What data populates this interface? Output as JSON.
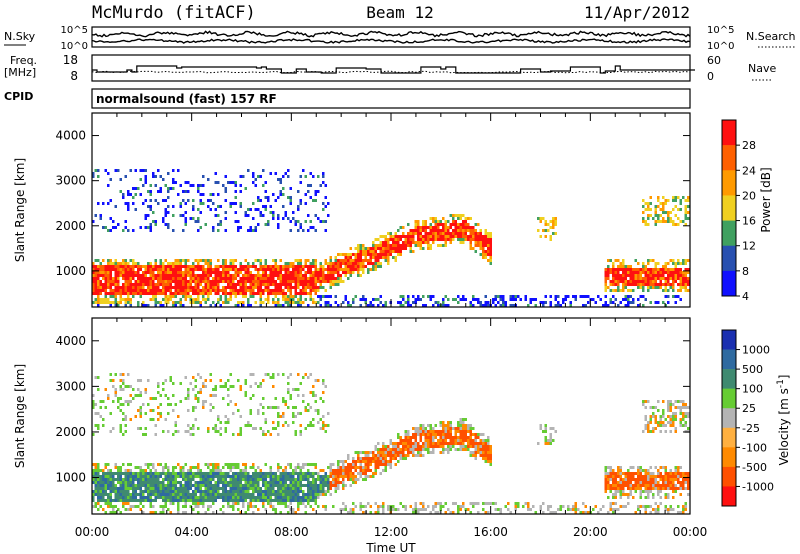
{
  "header": {
    "title": "McMurdo (fitACF)",
    "beam": "Beam 12",
    "date": "11/Apr/2012"
  },
  "panels": {
    "noise": {
      "left_label": "N.Sky",
      "right_label": "N.Search",
      "left_ticks": [
        "10^5",
        "10^0"
      ],
      "right_ticks": [
        "10^5",
        "10^0"
      ]
    },
    "freq": {
      "left_label_1": "Freq.",
      "left_label_2": "[MHz]",
      "left_ticks": [
        "18",
        "8"
      ],
      "right_label": "Nave",
      "right_ticks": [
        "60",
        "0"
      ]
    },
    "cpid": {
      "label": "CPID",
      "value": "normalsound (fast) 157 RF"
    }
  },
  "chart_data": [
    {
      "type": "heatmap",
      "name": "power",
      "ylabel": "Slant Range [km]",
      "xlabel": "",
      "ylim": [
        200,
        4500
      ],
      "y_ticks": [
        "1000",
        "2000",
        "3000",
        "4000"
      ],
      "x_ticks": [
        "00:00",
        "04:00",
        "08:00",
        "12:00",
        "16:00",
        "20:00",
        "00:00"
      ],
      "colorbar": {
        "label": "Power [dB]",
        "ticks": [
          "4",
          "8",
          "12",
          "16",
          "20",
          "24",
          "28"
        ],
        "colors": [
          "#1010ff",
          "#2850b0",
          "#40a060",
          "#f0d020",
          "#ff9a00",
          "#ff6000",
          "#ff1010"
        ]
      }
    },
    {
      "type": "heatmap",
      "name": "velocity",
      "ylabel": "Slant Range [km]",
      "xlabel": "Time UT",
      "ylim": [
        200,
        4500
      ],
      "y_ticks": [
        "1000",
        "2000",
        "3000",
        "4000"
      ],
      "x_ticks": [
        "00:00",
        "04:00",
        "08:00",
        "12:00",
        "16:00",
        "20:00",
        "00:00"
      ],
      "colorbar": {
        "label": "Velocity [m s",
        "label_sup": "-1",
        "label_end": "]",
        "ticks": [
          "1000",
          "500",
          "100",
          "25",
          "-25",
          "-100",
          "-500",
          "-1000"
        ],
        "colors": [
          "#1a2fb0",
          "#2f6aa0",
          "#3f8a70",
          "#66cc33",
          "#b4b4b4",
          "#ffb040",
          "#ff8a00",
          "#ff5000",
          "#ff1010"
        ]
      }
    }
  ]
}
